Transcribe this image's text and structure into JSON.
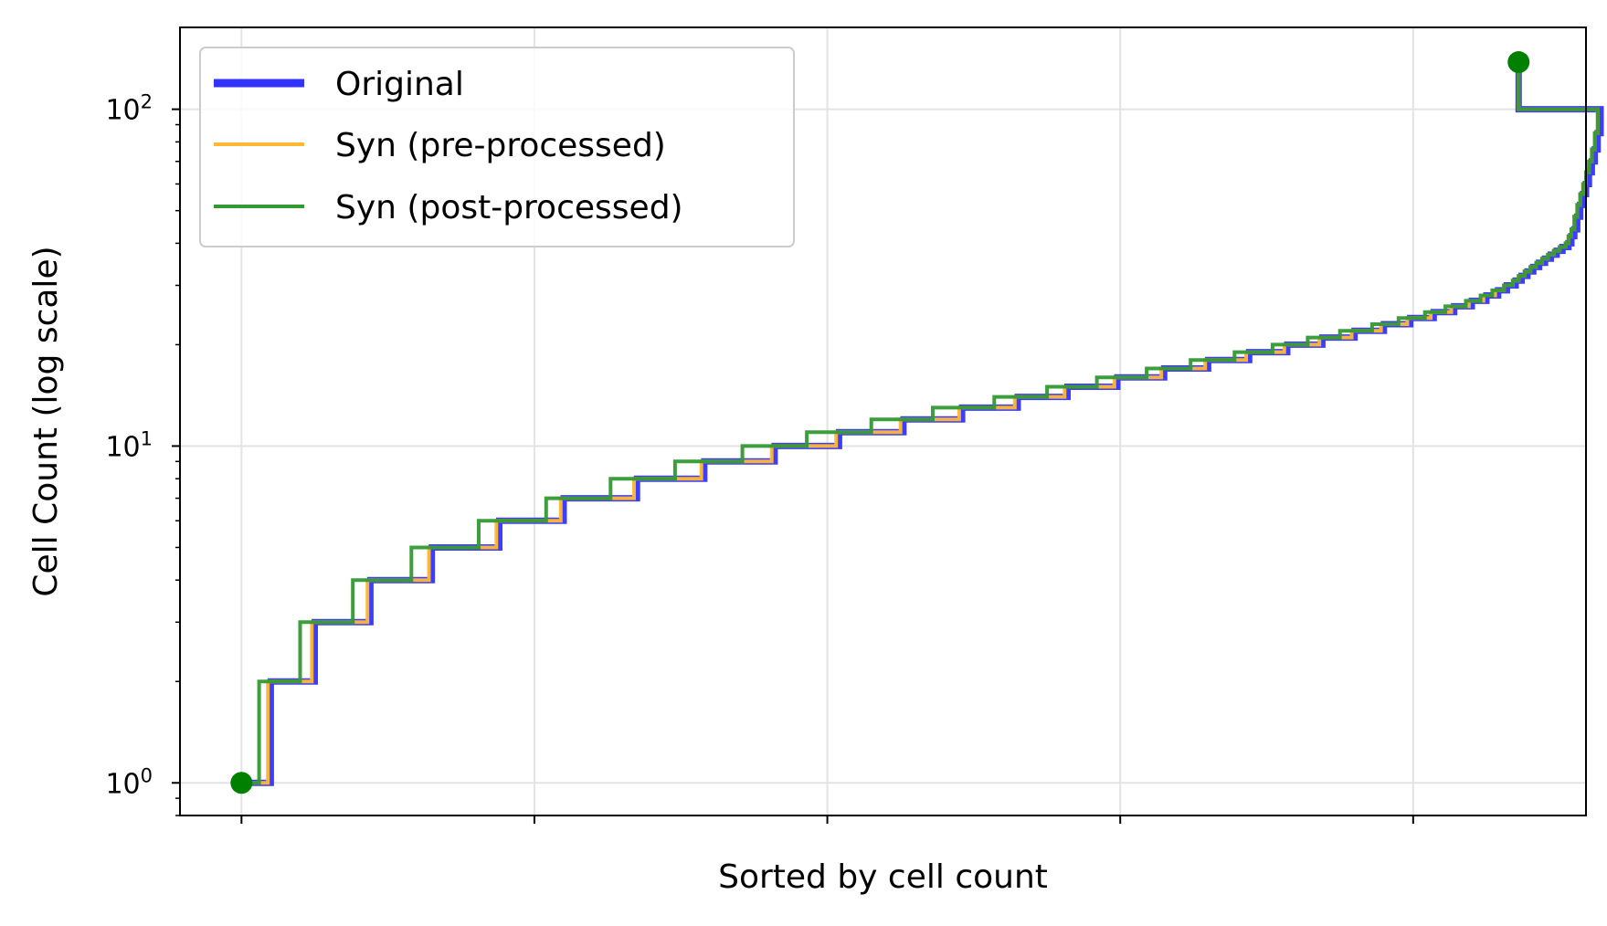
{
  "chart_data": {
    "type": "line",
    "title": "",
    "xlabel": "Sorted by cell count",
    "ylabel": "Cell Count (log scale)",
    "y_scale": "log",
    "ylim": [
      0.8,
      175
    ],
    "xlim": [
      -21,
      459
    ],
    "x_tick_values": [
      0,
      100,
      200,
      300,
      400
    ],
    "x_tick_labels": [
      "",
      "",
      "",
      "",
      ""
    ],
    "y_ticks": [
      {
        "value": 1,
        "base": "10",
        "exp": "0"
      },
      {
        "value": 10,
        "base": "10",
        "exp": "1"
      },
      {
        "value": 100,
        "base": "10",
        "exp": "2"
      }
    ],
    "grid": true,
    "legend_position": "top-left",
    "series": [
      {
        "name": "Original",
        "color": "#3333ff",
        "style": "step-thick",
        "steps": [
          [
            0,
            1
          ],
          [
            10,
            2
          ],
          [
            25,
            3
          ],
          [
            44,
            4
          ],
          [
            65,
            5
          ],
          [
            88,
            6
          ],
          [
            110,
            7
          ],
          [
            135,
            8
          ],
          [
            158,
            9
          ],
          [
            182,
            10
          ],
          [
            204,
            11
          ],
          [
            226,
            12
          ],
          [
            246,
            13
          ],
          [
            265,
            14
          ],
          [
            282,
            15
          ],
          [
            299,
            16
          ],
          [
            315,
            17
          ],
          [
            330,
            18
          ],
          [
            344,
            19
          ],
          [
            357,
            20
          ],
          [
            369,
            21
          ],
          [
            380,
            22
          ],
          [
            390,
            23
          ],
          [
            399,
            24
          ],
          [
            407,
            25
          ],
          [
            414,
            26
          ],
          [
            420,
            27
          ],
          [
            425,
            28
          ],
          [
            429,
            29
          ],
          [
            432,
            30
          ],
          [
            435,
            31
          ],
          [
            437,
            32
          ],
          [
            439,
            33
          ],
          [
            441,
            34
          ],
          [
            443,
            35
          ],
          [
            445,
            36
          ],
          [
            447,
            37
          ],
          [
            449,
            38
          ],
          [
            451,
            39
          ],
          [
            453,
            40
          ],
          [
            454,
            42
          ],
          [
            455,
            44
          ],
          [
            456,
            48
          ],
          [
            457,
            52
          ],
          [
            458,
            56
          ],
          [
            459,
            60
          ],
          [
            460,
            65
          ],
          [
            461,
            70
          ],
          [
            462,
            76
          ],
          [
            463,
            85
          ],
          [
            464,
            100
          ],
          [
            436,
            138
          ]
        ]
      },
      {
        "name": "Syn (pre-processed)",
        "color": "#ffb833",
        "style": "step",
        "steps": [
          [
            0,
            1
          ],
          [
            9,
            2
          ],
          [
            24,
            3
          ],
          [
            43,
            4
          ],
          [
            64,
            5
          ],
          [
            87,
            6
          ],
          [
            109,
            7
          ],
          [
            134,
            8
          ],
          [
            157,
            9
          ],
          [
            181,
            10
          ],
          [
            203,
            11
          ],
          [
            225,
            12
          ],
          [
            245,
            13
          ],
          [
            264,
            14
          ],
          [
            281,
            15
          ],
          [
            298,
            16
          ],
          [
            314,
            17
          ],
          [
            329,
            18
          ],
          [
            343,
            19
          ],
          [
            356,
            20
          ],
          [
            368,
            21
          ],
          [
            379,
            22
          ],
          [
            389,
            23
          ],
          [
            398,
            24
          ],
          [
            406,
            25
          ],
          [
            413,
            26
          ],
          [
            419,
            27
          ],
          [
            424,
            28
          ],
          [
            428,
            29
          ],
          [
            431,
            30
          ],
          [
            434,
            31
          ],
          [
            436,
            32
          ],
          [
            438,
            33
          ],
          [
            440,
            34
          ],
          [
            442,
            35
          ],
          [
            444,
            36
          ],
          [
            446,
            37
          ],
          [
            448,
            38
          ],
          [
            450,
            39
          ],
          [
            452,
            40
          ],
          [
            453,
            42
          ],
          [
            454,
            44
          ],
          [
            455,
            48
          ],
          [
            456,
            52
          ],
          [
            457,
            56
          ],
          [
            458,
            60
          ],
          [
            459,
            65
          ],
          [
            460,
            70
          ],
          [
            461,
            76
          ],
          [
            462,
            85
          ],
          [
            463,
            100
          ],
          [
            436,
            137
          ]
        ]
      },
      {
        "name": "Syn (post-processed)",
        "color": "#339933",
        "style": "step",
        "steps": [
          [
            0,
            1
          ],
          [
            6,
            2
          ],
          [
            20,
            3
          ],
          [
            38,
            4
          ],
          [
            58,
            5
          ],
          [
            81,
            6
          ],
          [
            104,
            7
          ],
          [
            126,
            8
          ],
          [
            148,
            9
          ],
          [
            171,
            10
          ],
          [
            193,
            11
          ],
          [
            215,
            12
          ],
          [
            236,
            13
          ],
          [
            257,
            14
          ],
          [
            275,
            15
          ],
          [
            292,
            16
          ],
          [
            309,
            17
          ],
          [
            324,
            18
          ],
          [
            339,
            19
          ],
          [
            352,
            20
          ],
          [
            364,
            21
          ],
          [
            375,
            22
          ],
          [
            386,
            23
          ],
          [
            395,
            24
          ],
          [
            404,
            25
          ],
          [
            411,
            26
          ],
          [
            418,
            27
          ],
          [
            423,
            28
          ],
          [
            427,
            29
          ],
          [
            431,
            30
          ],
          [
            434,
            31
          ],
          [
            436,
            32
          ],
          [
            438,
            33
          ],
          [
            440,
            34
          ],
          [
            442,
            35
          ],
          [
            444,
            36
          ],
          [
            446,
            37
          ],
          [
            448,
            38
          ],
          [
            450,
            39
          ],
          [
            452,
            40
          ],
          [
            453,
            42
          ],
          [
            454,
            44
          ],
          [
            455,
            48
          ],
          [
            456,
            52
          ],
          [
            457,
            56
          ],
          [
            458,
            60
          ],
          [
            459,
            65
          ],
          [
            460,
            70
          ],
          [
            461,
            76
          ],
          [
            462,
            85
          ],
          [
            463,
            100
          ],
          [
            436,
            138
          ]
        ]
      }
    ],
    "endpoints": {
      "color": "#008000",
      "points": [
        [
          0,
          1
        ],
        [
          436,
          138
        ]
      ]
    }
  }
}
